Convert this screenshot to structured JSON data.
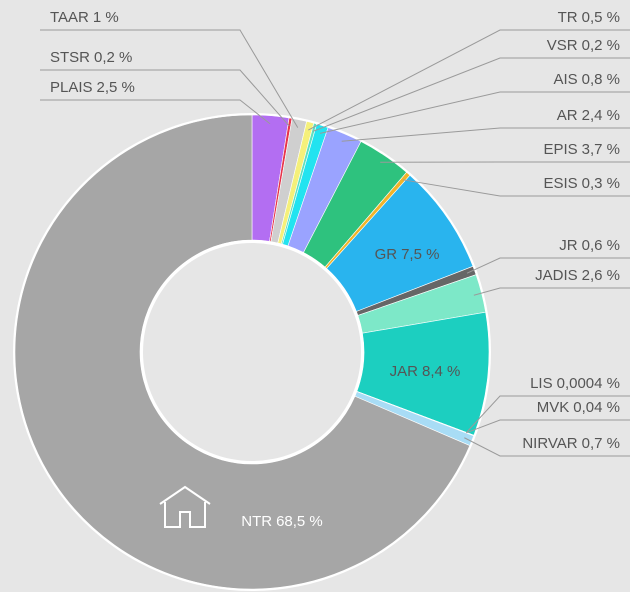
{
  "chart_data": {
    "type": "donut",
    "categories": [
      "PLAIS",
      "STSR",
      "TAAR",
      "TR",
      "VSR",
      "AIS",
      "AR",
      "EPIS",
      "ESIS",
      "GR",
      "JR",
      "JADIS",
      "JAR",
      "LIS",
      "MVK",
      "NIRVAR",
      "NTR"
    ],
    "values": [
      2.5,
      0.2,
      1,
      0.5,
      0.2,
      0.8,
      2.4,
      3.7,
      0.3,
      7.5,
      0.6,
      2.6,
      8.4,
      0.0004,
      0.04,
      0.7,
      68.5
    ],
    "value_labels": [
      "2,5 %",
      "0,2 %",
      "1 %",
      "0,5 %",
      "0,2 %",
      "0,8 %",
      "2,4 %",
      "3,7 %",
      "0,3 %",
      "7,5 %",
      "0,6 %",
      "2,6 %",
      "8,4 %",
      "0,0004 %",
      "0,04 %",
      "0,7 %",
      "68,5 %"
    ],
    "colors": [
      "#b36ef2",
      "#e8344a",
      "#cfcfcf",
      "#f5f07a",
      "#5ee0c0",
      "#22e3f0",
      "#9aa3ff",
      "#2ec27e",
      "#f0b429",
      "#29b4ee",
      "#666666",
      "#7de8c8",
      "#1ccfc0",
      "#333333",
      "#1a7f5a",
      "#a8dcf5",
      "#a6a6a6"
    ]
  }
}
